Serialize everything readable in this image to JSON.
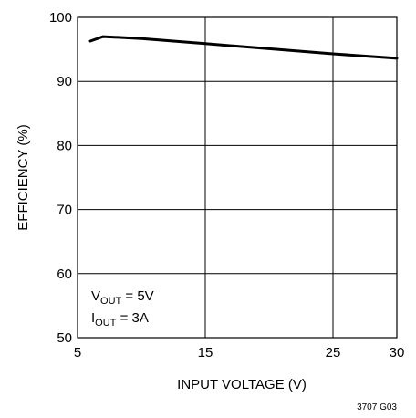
{
  "chart_data": {
    "type": "line",
    "xlabel": "INPUT VOLTAGE (V)",
    "ylabel": "EFFICIENCY (%)",
    "xlim": [
      5,
      30
    ],
    "ylim": [
      50,
      100
    ],
    "x_ticks": [
      5,
      15,
      25,
      30
    ],
    "x_tick_labels": [
      "5",
      "15",
      "25",
      "30"
    ],
    "y_ticks": [
      50,
      60,
      70,
      80,
      90,
      100
    ],
    "y_tick_labels": [
      "50",
      "60",
      "70",
      "80",
      "90",
      "100"
    ],
    "grid": true,
    "series": [
      {
        "x": [
          6,
          7,
          10,
          15,
          20,
          25,
          30
        ],
        "y": [
          96.3,
          97.0,
          96.7,
          95.9,
          95.1,
          94.3,
          93.6
        ]
      }
    ],
    "annotations": [
      {
        "main": "V",
        "sub": "OUT",
        "rest": " = 5V"
      },
      {
        "main": "I",
        "sub": "OUT",
        "rest": " = 3A"
      }
    ],
    "figure_id": "3707 G03"
  }
}
